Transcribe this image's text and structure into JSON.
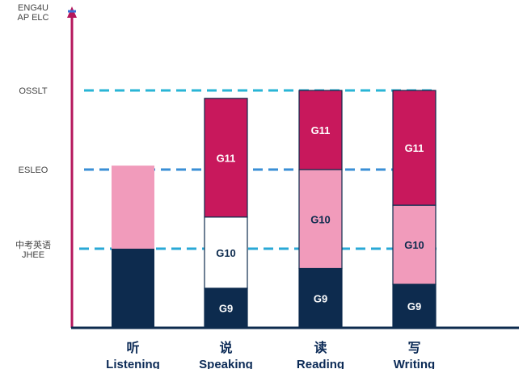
{
  "chart_data": {
    "type": "bar",
    "stacked": true,
    "y_levels": [
      {
        "label": "中考英语",
        "label2": "JHEE",
        "value": 1
      },
      {
        "label": "ESLEO",
        "value": 2
      },
      {
        "label": "OSSLT",
        "value": 3
      },
      {
        "label": "ENG4U",
        "label2": "AP ELC",
        "value": 4
      }
    ],
    "ylim": [
      0,
      4
    ],
    "categories": [
      {
        "zh": "听",
        "en": "Listening"
      },
      {
        "zh": "说",
        "en": "Speaking"
      },
      {
        "zh": "读",
        "en": "Reading"
      },
      {
        "zh": "写",
        "en": "Writing"
      }
    ],
    "bars": [
      {
        "category": "Listening",
        "segments": [
          {
            "label": "",
            "from": 0,
            "to": 1.0,
            "color": "#0d2b4e",
            "text_color": "#ffffff"
          },
          {
            "label": "",
            "from": 1.0,
            "to": 2.05,
            "color": "#f19bbb",
            "text_color": "#0d2b4e"
          }
        ]
      },
      {
        "category": "Speaking",
        "segments": [
          {
            "label": "",
            "from": 0,
            "to": 0.5,
            "color": "#0d2b4e",
            "text_color": "#ffffff"
          },
          {
            "label": "G9",
            "from": 0,
            "to": 0.5,
            "color": "#0d2b4e",
            "text_color": "#ffffff"
          },
          {
            "label": "G10",
            "from": 0.5,
            "to": 1.4,
            "color": "#ffffff",
            "text_color": "#0d2b4e"
          },
          {
            "label": "G11",
            "from": 1.4,
            "to": 2.9,
            "color": "#c8185c",
            "text_color": "#ffffff"
          }
        ]
      },
      {
        "category": "Reading",
        "segments": [
          {
            "label": "G9",
            "from": 0,
            "to": 0.75,
            "color": "#0d2b4e",
            "text_color": "#ffffff"
          },
          {
            "label": "G10",
            "from": 0.75,
            "to": 2.0,
            "color": "#f19bbb",
            "text_color": "#0d2b4e"
          },
          {
            "label": "G11",
            "from": 2.0,
            "to": 3.0,
            "color": "#c8185c",
            "text_color": "#ffffff"
          }
        ]
      },
      {
        "category": "Writing",
        "segments": [
          {
            "label": "G9",
            "from": 0,
            "to": 0.55,
            "color": "#0d2b4e",
            "text_color": "#ffffff"
          },
          {
            "label": "G10",
            "from": 0.55,
            "to": 1.55,
            "color": "#f19bbb",
            "text_color": "#0d2b4e"
          },
          {
            "label": "G11",
            "from": 1.55,
            "to": 3.0,
            "color": "#c8185c",
            "text_color": "#ffffff"
          }
        ]
      }
    ],
    "reference_lines": [
      {
        "value": 1,
        "color": "#29a8d6"
      },
      {
        "value": 2,
        "color": "#3a8fd6"
      },
      {
        "value": 3,
        "color": "#29b5d6"
      }
    ],
    "colors": {
      "axis": "#b5175c",
      "baseline": "#0d2b4e",
      "marker": "#3a6fd6"
    }
  }
}
